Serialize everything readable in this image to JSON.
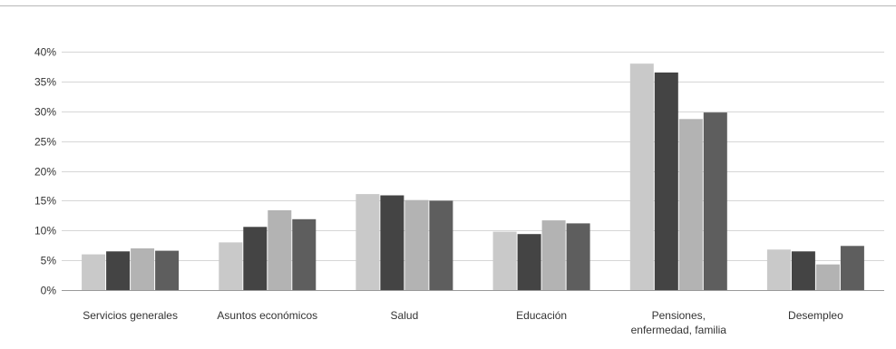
{
  "chart_data": {
    "type": "bar",
    "title": "",
    "xlabel": "",
    "ylabel": "",
    "ylim": [
      0,
      0.4
    ],
    "yticks": [
      0,
      0.05,
      0.1,
      0.15,
      0.2,
      0.25,
      0.3,
      0.35,
      0.4
    ],
    "ytick_labels": [
      "0%",
      "5%",
      "10%",
      "15%",
      "20%",
      "25%",
      "30%",
      "35%",
      "40%"
    ],
    "grid": true,
    "legend": "none",
    "categories": [
      [
        "Servicios generales"
      ],
      [
        "Asuntos económicos"
      ],
      [
        "Salud"
      ],
      [
        "Educación"
      ],
      [
        "Pensiones,",
        "enfermedad, familia"
      ],
      [
        "Desempleo"
      ]
    ],
    "series": [
      {
        "color": "#c9c9c9",
        "values": [
          0.06,
          0.08,
          0.161,
          0.098,
          0.38,
          0.068
        ]
      },
      {
        "color": "#444444",
        "values": [
          0.065,
          0.106,
          0.159,
          0.094,
          0.365,
          0.065
        ]
      },
      {
        "color": "#b3b3b3",
        "values": [
          0.07,
          0.134,
          0.151,
          0.117,
          0.287,
          0.043
        ]
      },
      {
        "color": "#5e5e5e",
        "values": [
          0.066,
          0.119,
          0.15,
          0.112,
          0.298,
          0.074
        ]
      }
    ]
  }
}
